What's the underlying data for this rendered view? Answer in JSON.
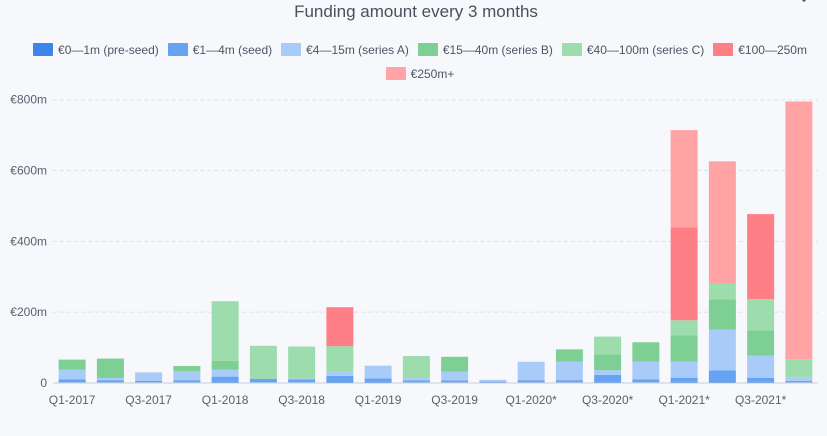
{
  "chart_data": {
    "type": "bar",
    "stacked": true,
    "title": "Funding amount every 3 months",
    "xlabel": "",
    "ylabel": "",
    "ylim": [
      0,
      850
    ],
    "yticks": [
      0,
      200,
      400,
      600,
      800
    ],
    "ytick_labels": [
      "0",
      "€200m",
      "€400m",
      "€600m",
      "€800m"
    ],
    "x_tick_labels": [
      "Q1-2017",
      "Q3-2017",
      "Q1-2018",
      "Q3-2018",
      "Q1-2019",
      "Q3-2019",
      "Q1-2020*",
      "Q3-2020*",
      "Q1-2021*",
      "Q3-2021*"
    ],
    "categories": [
      "Q1-2017",
      "Q2-2017",
      "Q3-2017",
      "Q4-2017",
      "Q1-2018",
      "Q2-2018",
      "Q3-2018",
      "Q4-2018",
      "Q1-2019",
      "Q2-2019",
      "Q3-2019",
      "Q4-2019",
      "Q1-2020*",
      "Q2-2020*",
      "Q3-2020*",
      "Q4-2020*",
      "Q1-2021*",
      "Q2-2021*",
      "Q3-2021*",
      "Q4-2021*"
    ],
    "series": [
      {
        "name": "€0—1m (pre-seed)",
        "color": "#3d85e8",
        "values": [
          2,
          2,
          2,
          2,
          3,
          2,
          2,
          4,
          3,
          2,
          2,
          1,
          2,
          2,
          3,
          2,
          3,
          4,
          3,
          2
        ]
      },
      {
        "name": "€1—4m (seed)",
        "color": "#66a3f2",
        "values": [
          8,
          6,
          4,
          6,
          15,
          10,
          8,
          16,
          10,
          5,
          5,
          3,
          6,
          6,
          20,
          8,
          12,
          32,
          12,
          4
        ]
      },
      {
        "name": "€4—15m (series A)",
        "color": "#a9cbf8",
        "values": [
          28,
          6,
          24,
          25,
          20,
          0,
          3,
          12,
          36,
          7,
          25,
          5,
          52,
          52,
          13,
          50,
          45,
          115,
          62,
          9
        ]
      },
      {
        "name": "€15—40m (series B)",
        "color": "#7ecf94",
        "values": [
          28,
          55,
          0,
          15,
          25,
          0,
          0,
          0,
          0,
          0,
          42,
          0,
          0,
          35,
          45,
          55,
          75,
          85,
          72,
          0
        ]
      },
      {
        "name": "€40—100m (series C)",
        "color": "#9cdcad",
        "values": [
          0,
          0,
          0,
          0,
          168,
          93,
          90,
          72,
          0,
          62,
          0,
          0,
          0,
          0,
          50,
          0,
          42,
          45,
          88,
          52
        ]
      },
      {
        "name": "€100—250m",
        "color": "#ff7f86",
        "values": [
          0,
          0,
          0,
          0,
          0,
          0,
          0,
          110,
          0,
          0,
          0,
          0,
          0,
          0,
          0,
          0,
          262,
          0,
          240,
          0
        ]
      },
      {
        "name": "€250m+",
        "color": "#ffa3a5",
        "values": [
          0,
          0,
          0,
          0,
          0,
          0,
          0,
          0,
          0,
          0,
          0,
          0,
          0,
          0,
          0,
          0,
          275,
          345,
          0,
          728
        ]
      }
    ]
  }
}
